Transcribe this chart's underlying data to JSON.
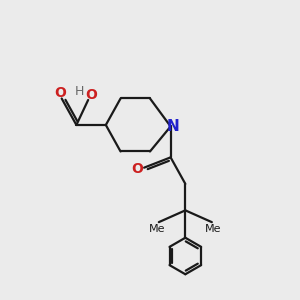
{
  "bg_color": "#ebebeb",
  "line_color": "#1a1a1a",
  "N_color": "#2222cc",
  "O_color": "#cc2020",
  "H_color": "#666666",
  "bond_lw": 1.6,
  "font_size": 10,
  "figsize": [
    3.0,
    3.0
  ],
  "dpi": 100,
  "xlim": [
    0,
    10
  ],
  "ylim": [
    0,
    10
  ]
}
